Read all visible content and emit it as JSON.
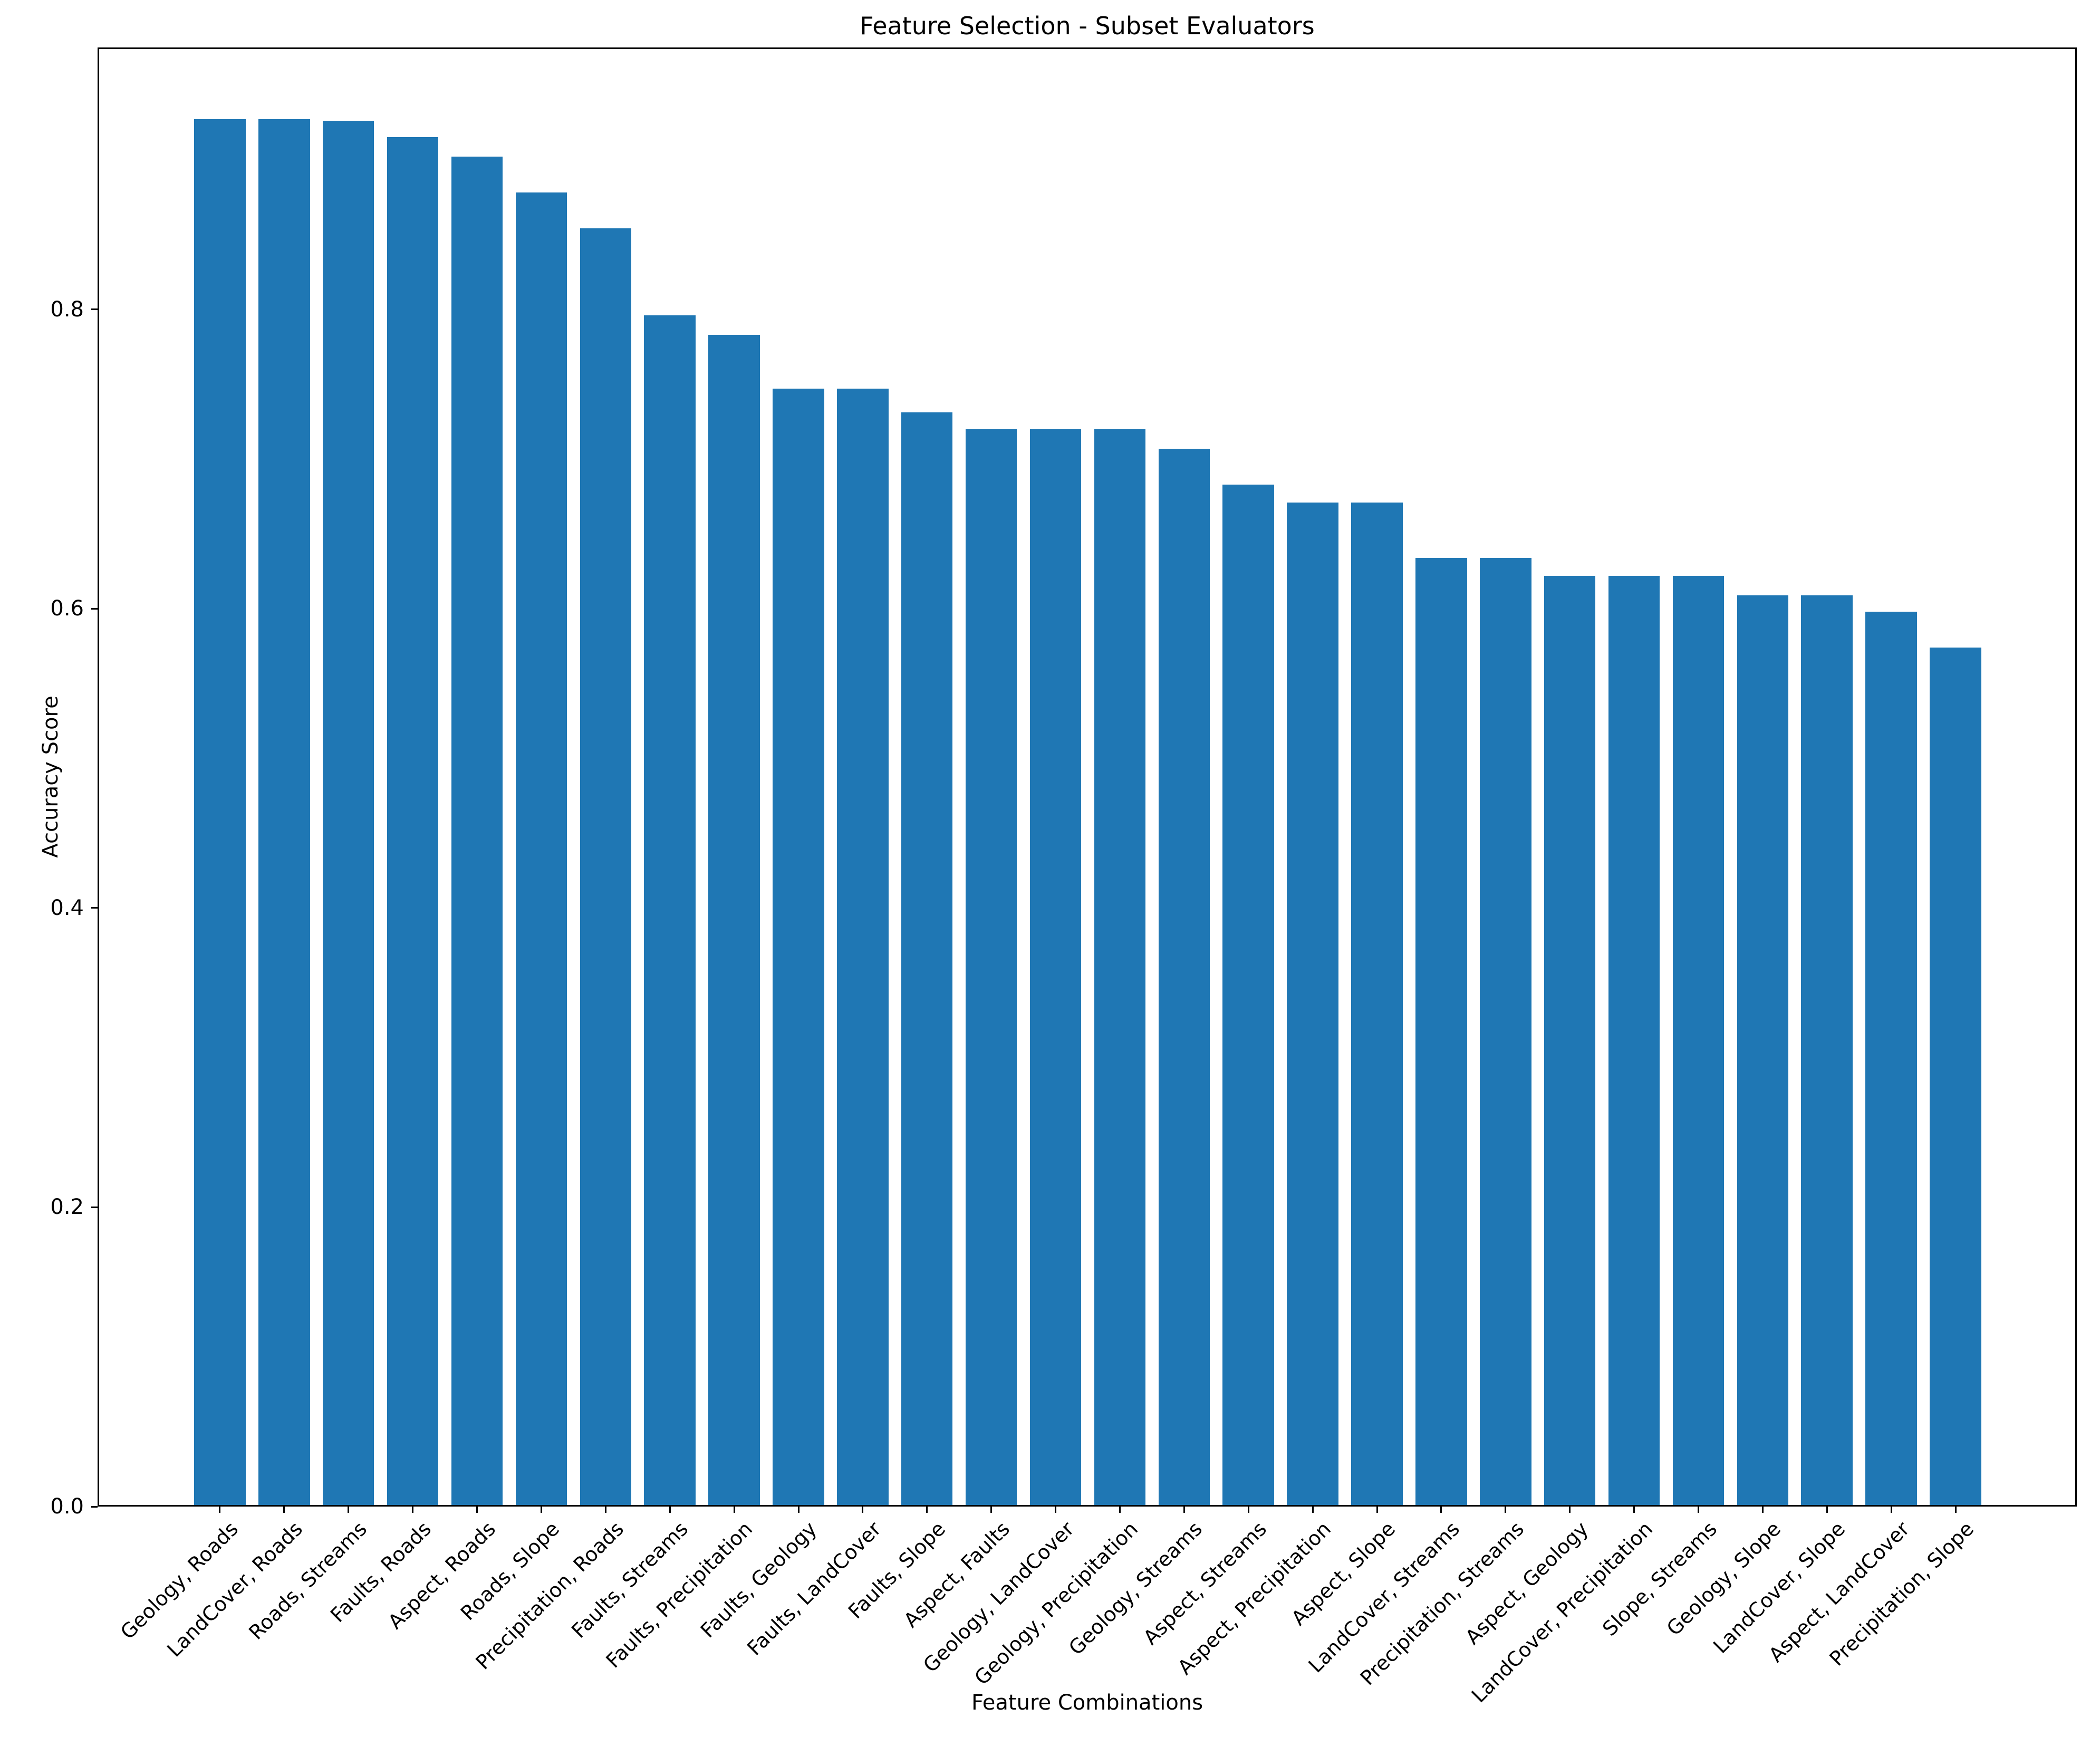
{
  "chart_data": {
    "type": "bar",
    "title": "Feature Selection - Subset Evaluators",
    "xlabel": "Feature Combinations",
    "ylabel": "Accuracy Score",
    "ylim": [
      0,
      0.975
    ],
    "yticks": [
      0.0,
      0.2,
      0.4,
      0.6,
      0.8
    ],
    "ytick_labels": [
      "0.0",
      "0.2",
      "0.4",
      "0.6",
      "0.8"
    ],
    "grid": false,
    "legend": null,
    "bar_color": "#1f77b4",
    "axis_color": "#000000",
    "background_color": "#ffffff",
    "categories": [
      "Geology, Roads",
      "LandCover, Roads",
      "Roads, Streams",
      "Faults, Roads",
      "Aspect, Roads",
      "Roads, Slope",
      "Precipitation, Roads",
      "Faults, Streams",
      "Faults, Precipitation",
      "Faults, Geology",
      "Faults, LandCover",
      "Faults, Slope",
      "Aspect, Faults",
      "Geology, LandCover",
      "Geology, Precipitation",
      "Geology, Streams",
      "Aspect, Streams",
      "Aspect, Precipitation",
      "Aspect, Slope",
      "LandCover, Streams",
      "Precipitation, Streams",
      "Aspect, Geology",
      "LandCover, Precipitation",
      "Slope, Streams",
      "Geology, Slope",
      "LandCover, Slope",
      "Aspect, LandCover",
      "Precipitation, Slope"
    ],
    "values": [
      0.927,
      0.927,
      0.926,
      0.915,
      0.902,
      0.878,
      0.854,
      0.796,
      0.783,
      0.747,
      0.747,
      0.731,
      0.72,
      0.72,
      0.72,
      0.707,
      0.683,
      0.671,
      0.671,
      0.634,
      0.634,
      0.622,
      0.622,
      0.622,
      0.609,
      0.609,
      0.598,
      0.574
    ]
  }
}
